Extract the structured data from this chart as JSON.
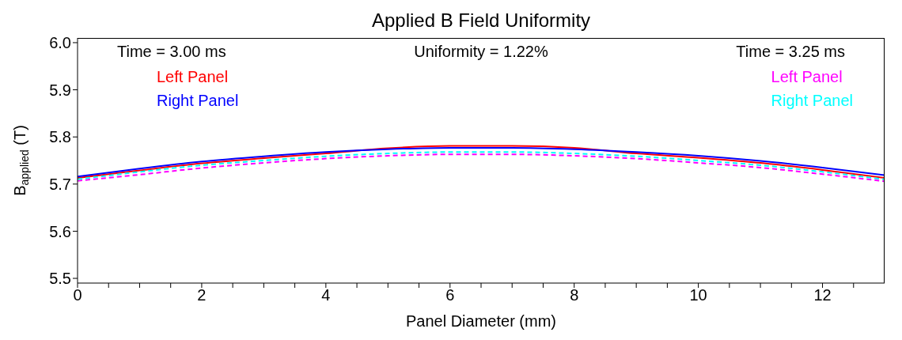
{
  "chart_data": {
    "type": "line",
    "title": "Applied B Field Uniformity",
    "xlabel": "Panel Diameter (mm)",
    "ylabel": "B$_{applied}$ (T)",
    "annotations": [
      "Time = 3.00 ms",
      "Uniformity = 1.22%",
      "Time = 3.25 ms"
    ],
    "x": [
      0,
      1,
      2,
      3,
      4,
      5,
      6,
      7,
      8,
      9,
      10,
      11,
      12,
      13
    ],
    "series": [
      {
        "name": "Left Panel",
        "color": "#ff0000",
        "line_style": "solid",
        "values": [
          5.713,
          5.729,
          5.744,
          5.755,
          5.765,
          5.776,
          5.781,
          5.781,
          5.777,
          5.765,
          5.756,
          5.745,
          5.73,
          5.713
        ]
      },
      {
        "name": "Right Panel",
        "color": "#0000ff",
        "line_style": "solid",
        "values": [
          5.716,
          5.733,
          5.748,
          5.759,
          5.768,
          5.774,
          5.777,
          5.777,
          5.774,
          5.768,
          5.76,
          5.749,
          5.735,
          5.719
        ]
      },
      {
        "name": "Left Panel",
        "color": "#ff00ff",
        "line_style": "dashed",
        "values": [
          5.707,
          5.72,
          5.734,
          5.745,
          5.754,
          5.76,
          5.763,
          5.763,
          5.76,
          5.754,
          5.745,
          5.735,
          5.721,
          5.706
        ]
      },
      {
        "name": "Right Panel",
        "color": "#00ffff",
        "line_style": "dashed",
        "values": [
          5.71,
          5.726,
          5.74,
          5.75,
          5.759,
          5.765,
          5.768,
          5.768,
          5.765,
          5.759,
          5.75,
          5.74,
          5.726,
          5.71
        ]
      }
    ],
    "xlim": [
      0,
      13
    ],
    "xticks": [
      0,
      {
        "value": 0.5,
        "label": null
      },
      {
        "value": 1,
        "label": null
      },
      {
        "value": 1.5,
        "label": null
      },
      2,
      {
        "value": 2.5,
        "label": null
      },
      {
        "value": 3,
        "label": null
      },
      {
        "value": 3.5,
        "label": null
      },
      4,
      {
        "value": 4.5,
        "label": null
      },
      {
        "value": 5,
        "label": null
      },
      {
        "value": 5.5,
        "label": null
      },
      6,
      {
        "value": 6.5,
        "label": null
      },
      {
        "value": 7,
        "label": null
      },
      {
        "value": 7.5,
        "label": null
      },
      8,
      {
        "value": 8.5,
        "label": null
      },
      {
        "value": 9,
        "label": null
      },
      {
        "value": 9.5,
        "label": null
      },
      10,
      {
        "value": 10.5,
        "label": null
      },
      {
        "value": 11,
        "label": null
      },
      {
        "value": 11.5,
        "label": null
      },
      12,
      {
        "value": 12.5,
        "label": null
      }
    ],
    "ylim": [
      5.49,
      6.01
    ],
    "yticks": [
      {
        "value": 5.5,
        "label": "5.5"
      },
      {
        "value": 5.6,
        "label": "5.6"
      },
      {
        "value": 5.7,
        "label": "5.7"
      },
      {
        "value": 5.8,
        "label": "5.8"
      },
      {
        "value": 5.9,
        "label": "5.9"
      },
      {
        "value": 6.0,
        "label": "6.0"
      }
    ],
    "grid": false,
    "legend": "top",
    "marker": "none"
  }
}
